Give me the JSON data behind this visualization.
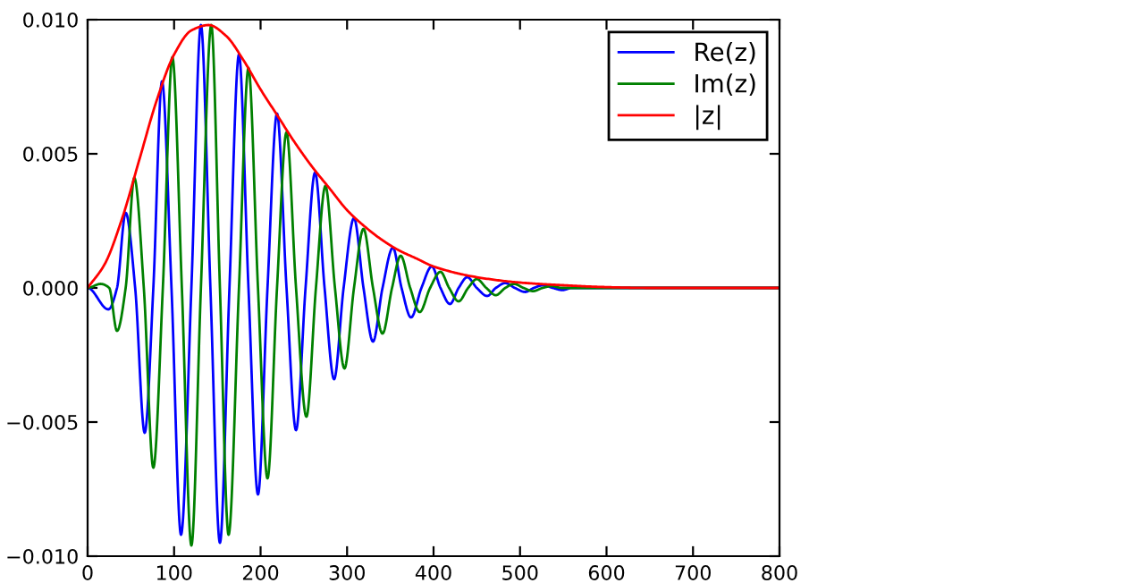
{
  "chart_data": {
    "type": "line",
    "xlim": [
      0,
      800
    ],
    "ylim": [
      -0.01,
      0.01
    ],
    "xticks": [
      0,
      100,
      200,
      300,
      400,
      500,
      600,
      700,
      800
    ],
    "yticks": [
      {
        "value": -0.01,
        "label": "−0.010"
      },
      {
        "value": -0.005,
        "label": "−0.005"
      },
      {
        "value": 0,
        "label": "0.000"
      },
      {
        "value": 0.005,
        "label": "0.005"
      },
      {
        "value": 0.01,
        "label": "0.010"
      }
    ],
    "grid": false,
    "legend": "top right",
    "marker": "none",
    "line_style": "solid",
    "series": [
      {
        "name": "Re(z)",
        "color": "#0000ff",
        "x": [
          0,
          24,
          34,
          44,
          55,
          66,
          76,
          86,
          97,
          108,
          120,
          131,
          142,
          153,
          164,
          175,
          186,
          197,
          208,
          219,
          230,
          241,
          252,
          263,
          274,
          285,
          296,
          308,
          319,
          330,
          341,
          353,
          363,
          374,
          386,
          398,
          408,
          419,
          429,
          439,
          450,
          462,
          472,
          483,
          494,
          506,
          516,
          527,
          538,
          549,
          560,
          800
        ],
        "values": [
          0,
          -0.0008,
          0,
          0.0028,
          0,
          -0.0054,
          0,
          0.0077,
          0,
          -0.0092,
          0,
          0.0098,
          0,
          -0.0095,
          0,
          0.0087,
          0,
          -0.0077,
          0,
          0.0065,
          0,
          -0.0053,
          0,
          0.0043,
          0,
          -0.0034,
          0,
          0.0026,
          0,
          -0.002,
          0,
          0.0015,
          0,
          -0.0011,
          0,
          0.0008,
          0,
          -0.0006,
          0,
          0.0004,
          0,
          -0.0003,
          0,
          0.00018,
          0,
          -0.00015,
          0,
          0.0001,
          0,
          -8e-05,
          0,
          0
        ]
      },
      {
        "name": "Im(z)",
        "color": "#008000",
        "x": [
          0,
          15,
          25,
          34,
          44,
          54,
          65,
          76,
          87,
          98,
          109,
          120,
          131,
          143,
          153,
          163,
          175,
          186,
          197,
          208,
          219,
          230,
          241,
          253,
          264,
          275,
          286,
          297,
          308,
          319,
          330,
          341,
          352,
          362,
          373,
          384,
          396,
          408,
          418,
          429,
          440,
          450,
          461,
          472,
          483,
          493,
          504,
          515,
          526,
          537,
          548,
          800
        ],
        "values": [
          0,
          0.00015,
          0,
          -0.0016,
          0,
          0.0041,
          0,
          -0.0067,
          0,
          0.0086,
          0,
          -0.0096,
          0,
          0.0098,
          0,
          -0.0092,
          0,
          0.0082,
          0,
          -0.0071,
          0,
          0.0058,
          0,
          -0.0048,
          0,
          0.0038,
          0,
          -0.003,
          0,
          0.0022,
          0,
          -0.0017,
          0,
          0.0012,
          0,
          -0.0009,
          0,
          0.0006,
          0,
          -0.0005,
          0,
          0.00033,
          0,
          -0.00027,
          0,
          0.00015,
          0,
          -0.00012,
          0,
          7e-05,
          0,
          0
        ]
      },
      {
        "name": "|z|",
        "color": "#ff0000",
        "x": [
          0,
          20,
          40,
          60,
          80,
          100,
          120,
          140,
          160,
          180,
          200,
          220,
          240,
          260,
          280,
          300,
          320,
          340,
          360,
          380,
          400,
          450,
          500,
          550,
          600,
          650,
          800
        ],
        "values": [
          0,
          0.0009,
          0.0026,
          0.0048,
          0.007,
          0.0087,
          0.0096,
          0.0098,
          0.0094,
          0.0085,
          0.0074,
          0.0064,
          0.0054,
          0.0045,
          0.0037,
          0.0029,
          0.0023,
          0.0018,
          0.0014,
          0.0011,
          0.0008,
          0.0004,
          0.0002,
          0.0001,
          3e-05,
          0,
          0
        ]
      }
    ]
  }
}
